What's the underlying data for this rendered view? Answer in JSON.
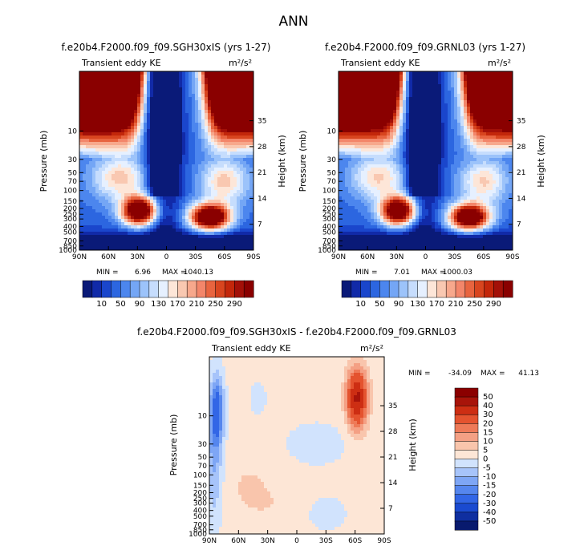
{
  "figure_title": "ANN",
  "chart_data": [
    {
      "type": "heatmap",
      "title": "f.e20b4.F2000.f09_f09.SGH30xIS (yrs 1-27)",
      "subtitle_left": "Transient eddy KE",
      "units": "m²/s²",
      "ylabel": "Pressure (mb)",
      "ylabel_right": "Height (km)",
      "x_ticks": [
        "90N",
        "60N",
        "30N",
        "0",
        "30S",
        "60S",
        "90S"
      ],
      "p_ticks": [
        "10",
        "30",
        "50",
        "70",
        "100",
        "150",
        "200",
        "250",
        "300",
        "400",
        "500",
        "700",
        "850",
        "1000"
      ],
      "h_ticks": [
        "35",
        "28",
        "21",
        "14",
        "7"
      ],
      "stats": {
        "min_label": "MIN =",
        "min": "6.96",
        "max_label": "MAX =",
        "max": "1040.13"
      },
      "colorbar": {
        "labels": [
          "10",
          "50",
          "90",
          "130",
          "170",
          "210",
          "250",
          "290"
        ]
      },
      "features": [
        {
          "lat": 50,
          "p": 10,
          "value": 290
        },
        {
          "lat": -55,
          "p": 10,
          "value": 290
        },
        {
          "lat": 28,
          "p": 220,
          "value": 290
        },
        {
          "lat": -45,
          "p": 280,
          "value": 290
        },
        {
          "lat": 3,
          "p": 10,
          "value": 10
        }
      ]
    },
    {
      "type": "heatmap",
      "title": "f.e20b4.F2000.f09_f09.GRNL03 (yrs 1-27)",
      "subtitle_left": "Transient eddy KE",
      "units": "m²/s²",
      "ylabel": "Pressure (mb)",
      "ylabel_right": "Height (km)",
      "x_ticks": [
        "90N",
        "60N",
        "30N",
        "0",
        "30S",
        "60S",
        "90S"
      ],
      "p_ticks": [
        "10",
        "30",
        "50",
        "70",
        "100",
        "150",
        "200",
        "250",
        "300",
        "400",
        "500",
        "700",
        "850",
        "1000"
      ],
      "h_ticks": [
        "35",
        "28",
        "21",
        "14",
        "7"
      ],
      "stats": {
        "min_label": "MIN =",
        "min": "7.01",
        "max_label": "MAX =",
        "max": "1000.03"
      },
      "colorbar": {
        "labels": [
          "10",
          "50",
          "90",
          "130",
          "170",
          "210",
          "250",
          "290"
        ]
      },
      "features": [
        {
          "lat": 50,
          "p": 10,
          "value": 290
        },
        {
          "lat": -55,
          "p": 10,
          "value": 290
        },
        {
          "lat": 28,
          "p": 220,
          "value": 290
        },
        {
          "lat": -45,
          "p": 280,
          "value": 290
        },
        {
          "lat": 3,
          "p": 10,
          "value": 10
        }
      ]
    },
    {
      "type": "heatmap",
      "title": "f.e20b4.F2000.f09_f09.SGH30xIS - f.e20b4.F2000.f09_f09.GRNL03",
      "subtitle_left": "Transient eddy KE",
      "units": "m²/s²",
      "ylabel": "Pressure (mb)",
      "ylabel_right": "Height (km)",
      "x_ticks": [
        "90N",
        "60N",
        "30N",
        "0",
        "30S",
        "60S",
        "90S"
      ],
      "p_ticks": [
        "10",
        "30",
        "50",
        "70",
        "100",
        "150",
        "200",
        "250",
        "300",
        "400",
        "500",
        "700",
        "850",
        "1000"
      ],
      "h_ticks": [
        "35",
        "28",
        "21",
        "14",
        "7"
      ],
      "stats": {
        "min_label": "MIN =",
        "min": "-34.09",
        "max_label": "MAX =",
        "max": "41.13"
      },
      "colorbar": {
        "labels": [
          "50",
          "40",
          "30",
          "20",
          "15",
          "10",
          "5",
          "0",
          "-5",
          "-10",
          "-15",
          "-20",
          "-30",
          "-40",
          "-50"
        ]
      },
      "features": [
        {
          "lat": -62,
          "p": 5,
          "value": 30
        },
        {
          "lat": 82,
          "p": 8,
          "value": -20
        },
        {
          "lat": 40,
          "p": 5,
          "value": -5
        },
        {
          "lat": 30,
          "p": 300,
          "value": 3
        },
        {
          "lat": -30,
          "p": 500,
          "value": -3
        }
      ]
    }
  ]
}
